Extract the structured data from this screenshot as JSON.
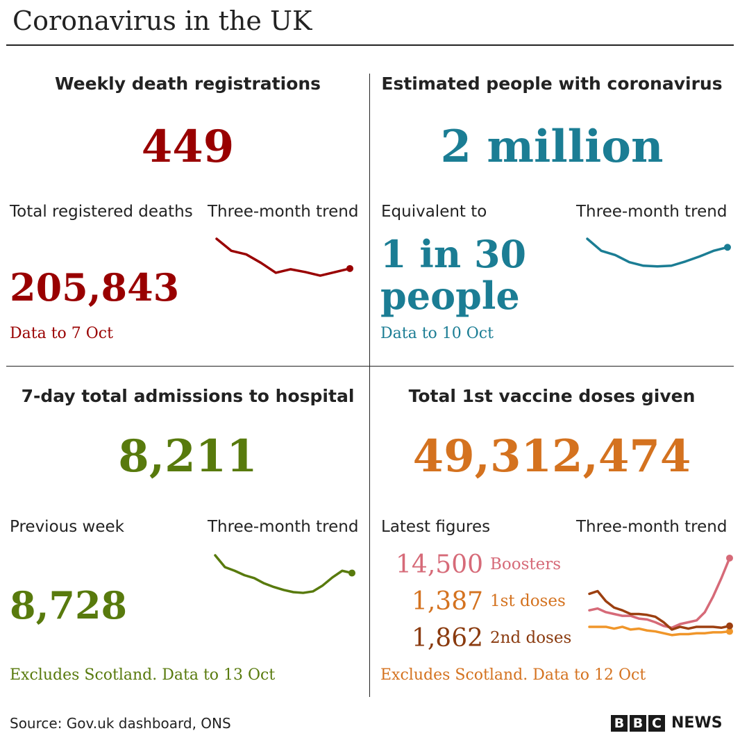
{
  "title": "Coronavirus in the UK",
  "colors": {
    "deaths": "#990000",
    "infections": "#1b7d94",
    "hospital": "#587a0d",
    "vaccine": "#d4721f",
    "boosters": "#d66a78",
    "first_doses": "#f0962a",
    "second_doses": "#9c3f10"
  },
  "panels": {
    "deaths": {
      "heading": "Weekly death registrations",
      "value": "449",
      "sub_label": "Total registered deaths",
      "sub_value": "205,843",
      "trend_label": "Three-month trend",
      "note": "Data to 7 Oct"
    },
    "infections": {
      "heading": "Estimated people with coronavirus",
      "value": "2 million",
      "sub_label": "Equivalent to",
      "sub_value_line1": "1 in 30",
      "sub_value_line2": "people",
      "trend_label": "Three-month trend",
      "note": "Data to 10 Oct"
    },
    "hospital": {
      "heading": "7-day total admissions to hospital",
      "value": "8,211",
      "sub_label": "Previous week",
      "sub_value": "8,728",
      "trend_label": "Three-month trend",
      "note": "Excludes Scotland. Data to 13 Oct"
    },
    "vaccine": {
      "heading": "Total 1st vaccine doses given",
      "value": "49,312,474",
      "sub_label": "Latest figures",
      "trend_label": "Three-month trend",
      "doses": [
        {
          "value": "14,500",
          "label": "Boosters"
        },
        {
          "value": "1,387",
          "label": "1st doses"
        },
        {
          "value": "1,862",
          "label": "2nd doses"
        }
      ],
      "note": "Excludes Scotland. Data to 12 Oct"
    }
  },
  "source": "Source: Gov.uk dashboard, ONS",
  "logo": {
    "letters": [
      "B",
      "B",
      "C"
    ],
    "news": "NEWS"
  },
  "chart_data": [
    {
      "type": "line",
      "title": "Three-month trend",
      "series": [
        {
          "values": [
            1.0,
            0.83,
            0.78,
            0.66,
            0.52,
            0.57,
            0.53,
            0.48,
            0.53,
            0.58
          ]
        }
      ]
    },
    {
      "type": "line",
      "title": "Three-month trend",
      "series": [
        {
          "values": [
            1.0,
            0.83,
            0.77,
            0.67,
            0.62,
            0.61,
            0.62,
            0.68,
            0.75,
            0.83,
            0.88
          ]
        }
      ]
    },
    {
      "type": "line",
      "title": "Three-month trend",
      "series": [
        {
          "values": [
            1.0,
            0.84,
            0.79,
            0.73,
            0.69,
            0.62,
            0.57,
            0.53,
            0.5,
            0.49,
            0.51,
            0.59,
            0.7,
            0.79,
            0.76
          ]
        }
      ]
    },
    {
      "type": "line",
      "title": "Three-month trend",
      "series": [
        {
          "name": "Boosters",
          "values": [
            0.4,
            0.42,
            0.38,
            0.36,
            0.34,
            0.34,
            0.31,
            0.3,
            0.27,
            0.23,
            0.21,
            0.25,
            0.27,
            0.29,
            0.38,
            0.55,
            0.75,
            0.97
          ]
        },
        {
          "name": "1st doses",
          "values": [
            0.22,
            0.22,
            0.22,
            0.2,
            0.22,
            0.19,
            0.2,
            0.18,
            0.17,
            0.15,
            0.13,
            0.14,
            0.14,
            0.15,
            0.15,
            0.16,
            0.16,
            0.17
          ]
        },
        {
          "name": "2nd doses",
          "values": [
            0.58,
            0.61,
            0.5,
            0.43,
            0.4,
            0.36,
            0.36,
            0.35,
            0.33,
            0.27,
            0.19,
            0.22,
            0.2,
            0.22,
            0.22,
            0.22,
            0.21,
            0.23
          ]
        }
      ]
    }
  ]
}
